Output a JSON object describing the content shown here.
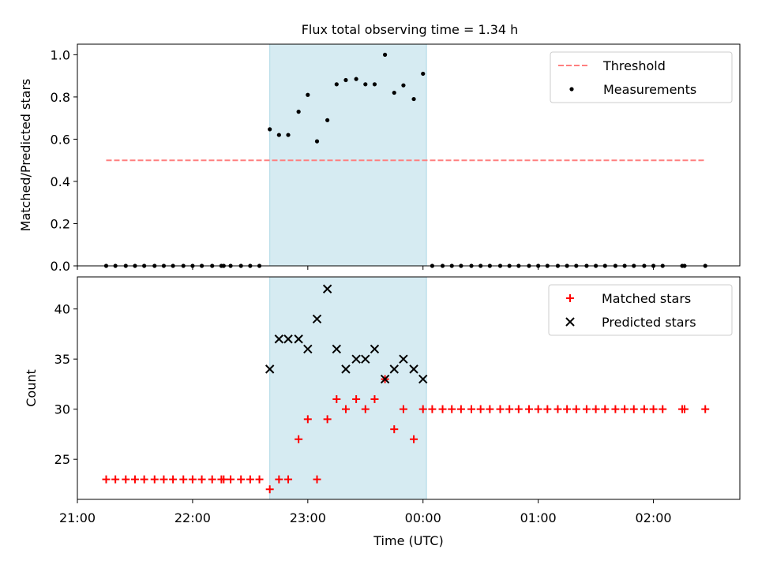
{
  "title": "Flux total observing time = 1.34 h",
  "chart_data": [
    {
      "type": "scatter",
      "panel": "top",
      "ylabel": "Matched/Predicted stars",
      "xlim": [
        21.0,
        26.75
      ],
      "ylim": [
        0.0,
        1.05
      ],
      "yticks": [
        0.0,
        0.2,
        0.4,
        0.6,
        0.8,
        1.0
      ],
      "ytick_labels": [
        "0.0",
        "0.2",
        "0.4",
        "0.6",
        "0.8",
        "1.0"
      ],
      "shaded_interval": [
        22.67,
        24.03
      ],
      "threshold": {
        "value": 0.5,
        "x_range": [
          21.25,
          26.45
        ],
        "color": "#ff7f7f"
      },
      "legend": {
        "position": "upper-right",
        "entries": [
          {
            "label": "Threshold",
            "marker": "dashed-line",
            "color": "#ff7f7f"
          },
          {
            "label": "Measurements",
            "marker": "dot",
            "color": "#000000"
          }
        ]
      },
      "series": [
        {
          "name": "Measurements",
          "color": "#000000",
          "x": [
            21.25,
            21.33,
            21.42,
            21.5,
            21.58,
            21.67,
            21.75,
            21.83,
            21.92,
            22.0,
            22.08,
            22.17,
            22.25,
            22.27,
            22.33,
            22.42,
            22.5,
            22.58,
            22.67,
            22.75,
            22.83,
            22.92,
            23.0,
            23.08,
            23.17,
            23.25,
            23.33,
            23.42,
            23.5,
            23.58,
            23.67,
            23.75,
            23.83,
            23.92,
            24.0,
            24.08,
            24.17,
            24.25,
            24.33,
            24.42,
            24.5,
            24.58,
            24.67,
            24.75,
            24.83,
            24.92,
            25.0,
            25.08,
            25.17,
            25.25,
            25.33,
            25.42,
            25.5,
            25.58,
            25.67,
            25.75,
            25.83,
            25.92,
            26.0,
            26.08,
            26.25,
            26.27,
            26.45
          ],
          "y": [
            0,
            0,
            0,
            0,
            0,
            0,
            0,
            0,
            0,
            0,
            0,
            0,
            0,
            0,
            0,
            0,
            0,
            0,
            0.647,
            0.62,
            0.62,
            0.73,
            0.81,
            0.59,
            0.69,
            0.86,
            0.88,
            0.885,
            0.86,
            0.86,
            1.0,
            0.82,
            0.855,
            0.79,
            0.91,
            0,
            0,
            0,
            0,
            0,
            0,
            0,
            0,
            0,
            0,
            0,
            0,
            0,
            0,
            0,
            0,
            0,
            0,
            0,
            0,
            0,
            0,
            0,
            0,
            0,
            0,
            0,
            0
          ]
        }
      ]
    },
    {
      "type": "scatter",
      "panel": "bottom",
      "xlabel": "Time (UTC)",
      "ylabel": "Count",
      "xlim": [
        21.0,
        26.75
      ],
      "ylim": [
        21,
        43.2
      ],
      "xticks": [
        21,
        22,
        23,
        24,
        25,
        26
      ],
      "xtick_labels": [
        "21:00",
        "22:00",
        "23:00",
        "00:00",
        "01:00",
        "02:00"
      ],
      "yticks": [
        25,
        30,
        35,
        40
      ],
      "ytick_labels": [
        "25",
        "30",
        "35",
        "40"
      ],
      "shaded_interval": [
        22.67,
        24.03
      ],
      "legend": {
        "position": "upper-right",
        "entries": [
          {
            "label": "Matched stars",
            "marker": "plus",
            "color": "#ff0000"
          },
          {
            "label": "Predicted stars",
            "marker": "x",
            "color": "#000000"
          }
        ]
      },
      "series": [
        {
          "name": "Matched stars",
          "color": "#ff0000",
          "x": [
            21.25,
            21.33,
            21.42,
            21.5,
            21.58,
            21.67,
            21.75,
            21.83,
            21.92,
            22.0,
            22.08,
            22.17,
            22.25,
            22.27,
            22.33,
            22.42,
            22.5,
            22.58,
            22.67,
            22.75,
            22.83,
            22.92,
            23.0,
            23.08,
            23.17,
            23.25,
            23.33,
            23.42,
            23.5,
            23.58,
            23.67,
            23.75,
            23.83,
            23.92,
            24.0,
            24.08,
            24.17,
            24.25,
            24.33,
            24.42,
            24.5,
            24.58,
            24.67,
            24.75,
            24.83,
            24.92,
            25.0,
            25.08,
            25.17,
            25.25,
            25.33,
            25.42,
            25.5,
            25.58,
            25.67,
            25.75,
            25.83,
            25.92,
            26.0,
            26.08,
            26.25,
            26.27,
            26.45
          ],
          "y": [
            23,
            23,
            23,
            23,
            23,
            23,
            23,
            23,
            23,
            23,
            23,
            23,
            23,
            23,
            23,
            23,
            23,
            23,
            22,
            23,
            23,
            27,
            29,
            23,
            29,
            31,
            30,
            31,
            30,
            31,
            33,
            28,
            30,
            27,
            30,
            30,
            30,
            30,
            30,
            30,
            30,
            30,
            30,
            30,
            30,
            30,
            30,
            30,
            30,
            30,
            30,
            30,
            30,
            30,
            30,
            30,
            30,
            30,
            30,
            30,
            30,
            30,
            30
          ]
        },
        {
          "name": "Predicted stars",
          "color": "#000000",
          "x": [
            22.67,
            22.75,
            22.83,
            22.92,
            23.0,
            23.08,
            23.17,
            23.25,
            23.33,
            23.42,
            23.5,
            23.58,
            23.67,
            23.75,
            23.83,
            23.92,
            24.0
          ],
          "y": [
            34,
            37,
            37,
            37,
            36,
            39,
            42,
            36,
            34,
            35,
            35,
            36,
            33,
            34,
            35,
            34,
            33
          ]
        }
      ]
    }
  ]
}
